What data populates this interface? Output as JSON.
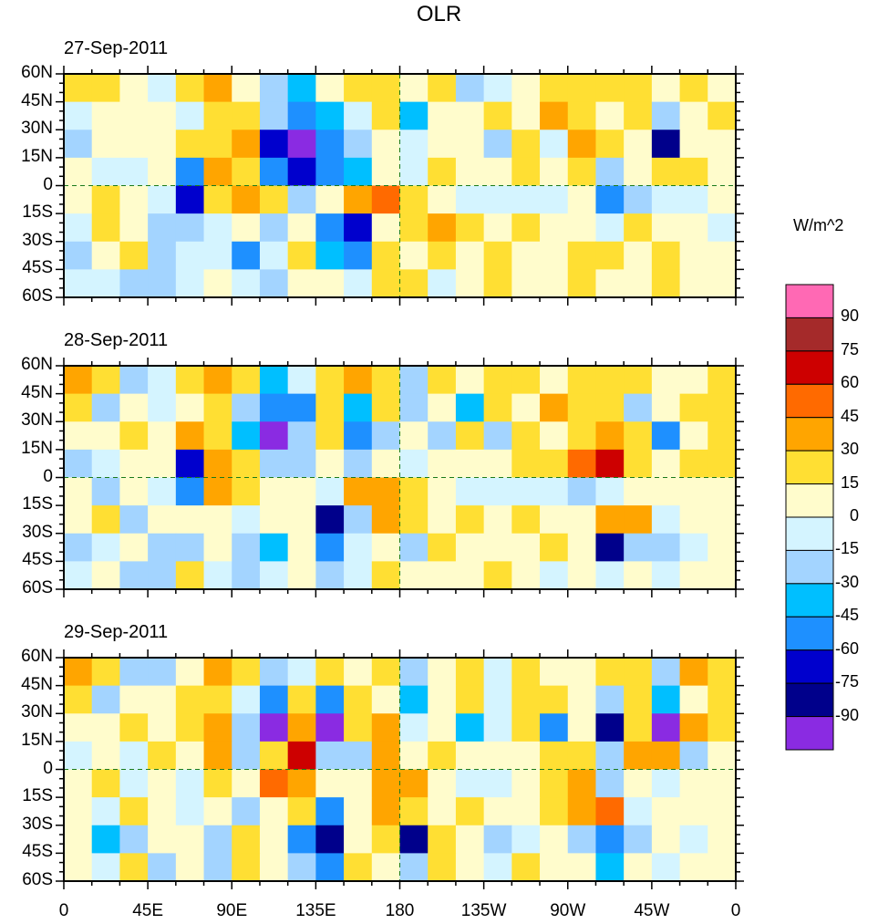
{
  "chart_data": {
    "type": "heatmap",
    "title": "OLR",
    "units_label": "W/m^2",
    "xlabel": "",
    "ylabel": "",
    "x_ticks": [
      "0",
      "45E",
      "90E",
      "135E",
      "180",
      "135W",
      "90W",
      "45W",
      "0"
    ],
    "y_ticks": [
      "60N",
      "45N",
      "30N",
      "15N",
      "0",
      "15S",
      "30S",
      "45S",
      "60S"
    ],
    "lon_range": [
      0,
      360
    ],
    "lat_range": [
      -60,
      60
    ],
    "grid_resolution_deg": 15,
    "reference_lines": [
      "equator (dashed)",
      "180 meridian (dashed)"
    ],
    "colorbar": {
      "levels": [
        -90,
        -75,
        -60,
        -45,
        -30,
        -15,
        0,
        15,
        30,
        45,
        60,
        75,
        90
      ],
      "level_labels": [
        "90",
        "75",
        "60",
        "45",
        "30",
        "15",
        "0",
        "-15",
        "-30",
        "-45",
        "-60",
        "-75",
        "-90"
      ],
      "colors_high_to_low": [
        "#ff69b4",
        "#a52a2a",
        "#cd0000",
        "#ff6a00",
        "#ffa500",
        "#ffdf33",
        "#fffccc",
        "#d4f4ff",
        "#a3d4ff",
        "#00bfff",
        "#1e90ff",
        "#0000cd",
        "#00008b",
        "#8a2be2"
      ],
      "orientation": "vertical",
      "placement": "right"
    },
    "missing_color": "#bebebe",
    "panels": [
      {
        "date": "27-Sep-2011",
        "rows_lat": [
          "60N-45N",
          "45N-30N",
          "30N-15N",
          "15N-0",
          "0-15S",
          "15S-30S",
          "30S-45S",
          "45S-60S"
        ],
        "values": [
          [
            20,
            25,
            10,
            -10,
            15,
            30,
            10,
            -20,
            -40,
            10,
            20,
            15,
            10,
            20,
            -20,
            -10,
            10,
            20,
            15,
            20,
            25,
            10,
            15,
            10
          ],
          [
            -15,
            10,
            0,
            10,
            -10,
            15,
            20,
            -30,
            -60,
            -40,
            -10,
            20,
            -40,
            10,
            10,
            20,
            10,
            30,
            20,
            10,
            20,
            -30,
            10,
            20
          ],
          [
            -20,
            0,
            10,
            0,
            20,
            25,
            30,
            -70,
            -95,
            -60,
            -20,
            10,
            -10,
            0,
            10,
            -30,
            15,
            -10,
            30,
            20,
            10,
            -80,
            10,
            10
          ],
          [
            0,
            -10,
            -5,
            10,
            -50,
            30,
            20,
            -60,
            -70,
            -50,
            -40,
            10,
            -10,
            15,
            0,
            0,
            15,
            10,
            20,
            -20,
            10,
            20,
            15,
            10
          ],
          [
            10,
            15,
            5,
            -10,
            -70,
            20,
            30,
            20,
            -30,
            10,
            40,
            50,
            20,
            0,
            -10,
            -10,
            -10,
            -10,
            0,
            -50,
            -20,
            -10,
            -10,
            0
          ],
          [
            -10,
            20,
            5,
            -20,
            -20,
            -10,
            10,
            -20,
            10,
            -50,
            -70,
            10,
            20,
            30,
            20,
            10,
            15,
            10,
            10,
            -10,
            20,
            0,
            10,
            -10
          ],
          [
            -20,
            0,
            15,
            -30,
            -10,
            -10,
            -60,
            -10,
            15,
            -40,
            -60,
            20,
            10,
            20,
            10,
            20,
            10,
            0,
            20,
            20,
            10,
            15,
            10,
            0
          ],
          [
            -10,
            -15,
            -30,
            -20,
            -10,
            10,
            -10,
            -20,
            0,
            10,
            -10,
            20,
            20,
            -10,
            10,
            20,
            10,
            10,
            20,
            10,
            10,
            15,
            10,
            10
          ]
        ]
      },
      {
        "date": "28-Sep-2011",
        "rows_lat": [
          "60N-45N",
          "45N-30N",
          "30N-15N",
          "15N-0",
          "0-15S",
          "15S-30S",
          "30S-45S",
          "45S-60S"
        ],
        "values": [
          [
            30,
            20,
            -20,
            -10,
            15,
            30,
            20,
            -40,
            -10,
            20,
            30,
            15,
            -30,
            20,
            10,
            20,
            20,
            10,
            15,
            20,
            20,
            10,
            10,
            15
          ],
          [
            20,
            -30,
            0,
            -10,
            10,
            20,
            -20,
            -60,
            -50,
            20,
            -40,
            20,
            -30,
            10,
            -40,
            20,
            10,
            30,
            20,
            20,
            -20,
            10,
            20,
            20
          ],
          [
            10,
            0,
            20,
            10,
            30,
            20,
            -40,
            -95,
            -30,
            20,
            -50,
            -20,
            10,
            -20,
            20,
            -20,
            20,
            10,
            20,
            40,
            20,
            -60,
            10,
            20
          ],
          [
            -20,
            -10,
            10,
            10,
            -70,
            40,
            20,
            -20,
            -20,
            0,
            -20,
            10,
            -10,
            10,
            10,
            0,
            15,
            20,
            45,
            60,
            20,
            10,
            20,
            20
          ],
          [
            10,
            -20,
            10,
            -10,
            -60,
            40,
            20,
            10,
            10,
            -10,
            40,
            30,
            20,
            0,
            -10,
            -10,
            -10,
            -10,
            -20,
            -10,
            10,
            0,
            0,
            10
          ],
          [
            10,
            20,
            -20,
            0,
            0,
            10,
            -10,
            0,
            10,
            -90,
            -20,
            30,
            20,
            10,
            15,
            10,
            20,
            10,
            10,
            40,
            30,
            -10,
            10,
            0
          ],
          [
            -20,
            -10,
            10,
            -20,
            -30,
            10,
            -20,
            -40,
            10,
            -60,
            -10,
            10,
            -20,
            20,
            10,
            0,
            10,
            20,
            10,
            -80,
            -20,
            -20,
            -10,
            10
          ],
          [
            -10,
            10,
            -20,
            -30,
            20,
            -10,
            -20,
            -10,
            10,
            -20,
            -10,
            20,
            10,
            0,
            10,
            20,
            10,
            -10,
            10,
            -10,
            10,
            -10,
            10,
            10
          ]
        ]
      },
      {
        "date": "29-Sep-2011",
        "rows_lat": [
          "60N-45N",
          "45N-30N",
          "30N-15N",
          "15N-0",
          "0-15S",
          "15S-30S",
          "30S-45S",
          "45S-60S"
        ],
        "values": [
          [
            40,
            20,
            -20,
            -30,
            10,
            30,
            20,
            -30,
            -10,
            20,
            10,
            20,
            -20,
            10,
            20,
            -10,
            20,
            10,
            10,
            20,
            20,
            -20,
            30,
            20
          ],
          [
            20,
            -20,
            10,
            0,
            20,
            20,
            -10,
            -60,
            20,
            -50,
            20,
            10,
            -40,
            10,
            20,
            -10,
            20,
            20,
            10,
            -30,
            20,
            -40,
            10,
            20
          ],
          [
            0,
            10,
            20,
            0,
            20,
            40,
            -20,
            -95,
            30,
            -95,
            20,
            30,
            -10,
            10,
            -40,
            -10,
            20,
            -60,
            10,
            -90,
            20,
            -95,
            30,
            20
          ],
          [
            -10,
            0,
            -10,
            20,
            10,
            30,
            -20,
            20,
            60,
            -20,
            -20,
            30,
            10,
            20,
            10,
            10,
            10,
            20,
            20,
            -20,
            30,
            30,
            -30,
            10
          ],
          [
            10,
            20,
            -10,
            10,
            -10,
            20,
            10,
            50,
            30,
            0,
            0,
            40,
            30,
            10,
            -10,
            -10,
            0,
            20,
            40,
            -20,
            10,
            -10,
            0,
            0
          ],
          [
            10,
            -10,
            20,
            10,
            -10,
            10,
            -20,
            10,
            20,
            -60,
            10,
            40,
            20,
            10,
            20,
            10,
            10,
            20,
            40,
            45,
            -10,
            10,
            0,
            10
          ],
          [
            0,
            -40,
            -20,
            10,
            10,
            -20,
            20,
            10,
            -60,
            -80,
            10,
            20,
            -80,
            20,
            10,
            -20,
            -10,
            10,
            -30,
            -60,
            -30,
            10,
            -10,
            0
          ],
          [
            10,
            -10,
            20,
            -20,
            10,
            -30,
            20,
            10,
            -30,
            -50,
            20,
            10,
            -20,
            20,
            10,
            -10,
            20,
            10,
            10,
            -40,
            10,
            -10,
            10,
            10
          ]
        ]
      }
    ]
  }
}
